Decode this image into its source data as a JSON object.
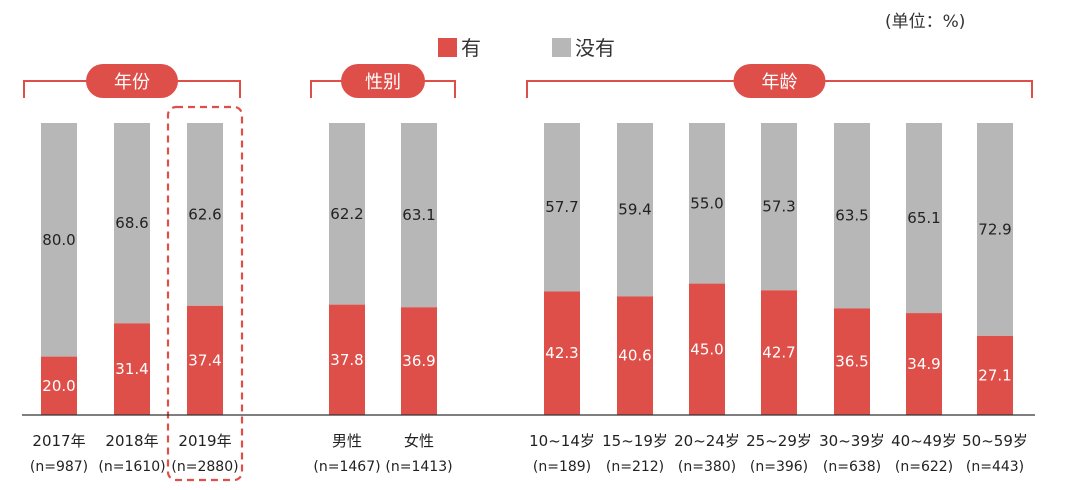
{
  "unit_label": "(单位：%)",
  "chart_data": {
    "type": "bar",
    "stacked": true,
    "normalized_percent": true,
    "colors": {
      "有": "#de4f4a",
      "没有": "#b7b7b7"
    },
    "legend": {
      "position": "top-center",
      "entries": [
        "有",
        "没有"
      ]
    },
    "series": [
      {
        "name": "有",
        "values": [
          20.0,
          31.4,
          37.4,
          37.8,
          36.9,
          42.3,
          40.6,
          45.0,
          42.7,
          36.5,
          34.9,
          27.1
        ]
      },
      {
        "name": "没有",
        "values": [
          80.0,
          68.6,
          62.6,
          62.2,
          63.1,
          57.7,
          59.4,
          55.0,
          57.3,
          63.5,
          65.1,
          72.9
        ]
      }
    ],
    "series_labels": [
      [
        "20.0",
        "31.4",
        "37.4",
        "37.8",
        "36.9",
        "42.3",
        "40.6",
        "45.0",
        "42.7",
        "36.5",
        "34.9",
        "27.1"
      ],
      [
        "80.0",
        "68.6",
        "62.6",
        "62.2",
        "63.1",
        "57.7",
        "59.4",
        "55.0",
        "57.3",
        "63.5",
        "65.1",
        "72.9"
      ]
    ],
    "categories": [
      "2017年",
      "2018年",
      "2019年",
      "男性",
      "女性",
      "10~14岁",
      "15~19岁",
      "20~24岁",
      "25~29岁",
      "30~39岁",
      "40~49岁",
      "50~59岁"
    ],
    "sample_sizes": [
      "(n=987)",
      "(n=1610)",
      "(n=2880)",
      "(n=1467)",
      "(n=1413)",
      "(n=189)",
      "(n=212)",
      "(n=380)",
      "(n=396)",
      "(n=638)",
      "(n=622)",
      "(n=443)"
    ],
    "groups": [
      {
        "label": "年份",
        "start": 0,
        "end": 2
      },
      {
        "label": "性别",
        "start": 3,
        "end": 4
      },
      {
        "label": "年龄",
        "start": 5,
        "end": 11
      }
    ],
    "highlighted_category": 2,
    "ylim": [
      0,
      100
    ],
    "grid": false
  }
}
